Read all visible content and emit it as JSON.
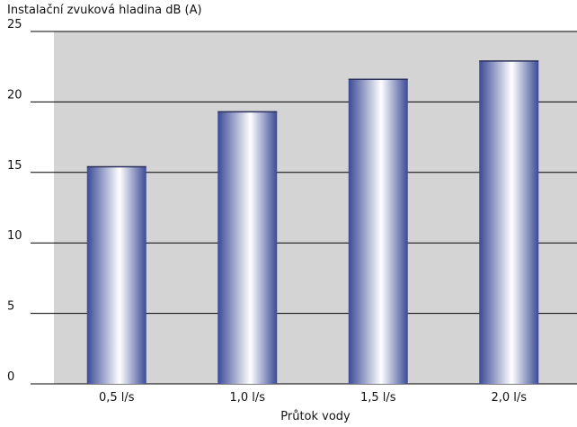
{
  "chart_data": {
    "type": "bar",
    "ylabel": "Instalační zvuková hladina dB (A)",
    "xlabel": "Průtok vody",
    "categories": [
      "0,5 l/s",
      "1,0 l/s",
      "1,5 l/s",
      "2,0 l/s"
    ],
    "values": [
      15.4,
      19.3,
      21.6,
      22.9
    ],
    "ylim": [
      0,
      25
    ],
    "yticks": [
      "0",
      "5",
      "10",
      "15",
      "20",
      "25"
    ],
    "grid": true,
    "colors": {
      "plot_background": "#d4d4d4",
      "bar_dark": "#3b4a96",
      "bar_light": "#ffffff",
      "gridline": "#000000"
    }
  }
}
